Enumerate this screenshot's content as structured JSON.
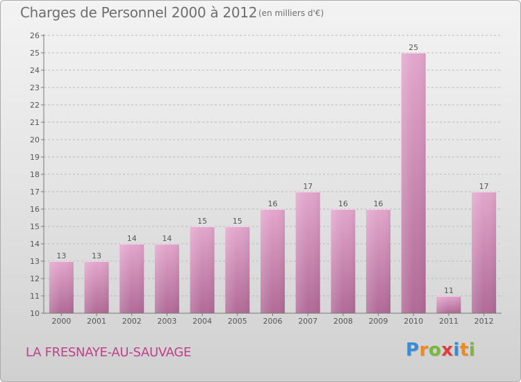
{
  "header": {
    "title": "Charges de Personnel 2000 à 2012",
    "subtitle": "(en milliers d'€)"
  },
  "footer": {
    "commune": "LA FRESNAYE-AU-SAUVAGE",
    "logo": "Proxiti"
  },
  "colors": {
    "bar_top": "#e3a6cc",
    "bar_bottom": "#b06a96",
    "label": "#555555",
    "commune": "#c0408a"
  },
  "chart_data": {
    "type": "bar",
    "title": "Charges de Personnel 2000 à 2012",
    "subtitle": "(en milliers d'€)",
    "xlabel": "",
    "ylabel": "",
    "ylim": [
      10,
      26
    ],
    "yticks": [
      10,
      11,
      12,
      13,
      14,
      15,
      16,
      17,
      18,
      19,
      20,
      21,
      22,
      23,
      24,
      25,
      26
    ],
    "grid": true,
    "categories": [
      "2000",
      "2001",
      "2002",
      "2003",
      "2004",
      "2005",
      "2006",
      "2007",
      "2008",
      "2009",
      "2010",
      "2011",
      "2012"
    ],
    "values": [
      13,
      13,
      14,
      14,
      15,
      15,
      16,
      17,
      16,
      16,
      25,
      11,
      17
    ]
  }
}
